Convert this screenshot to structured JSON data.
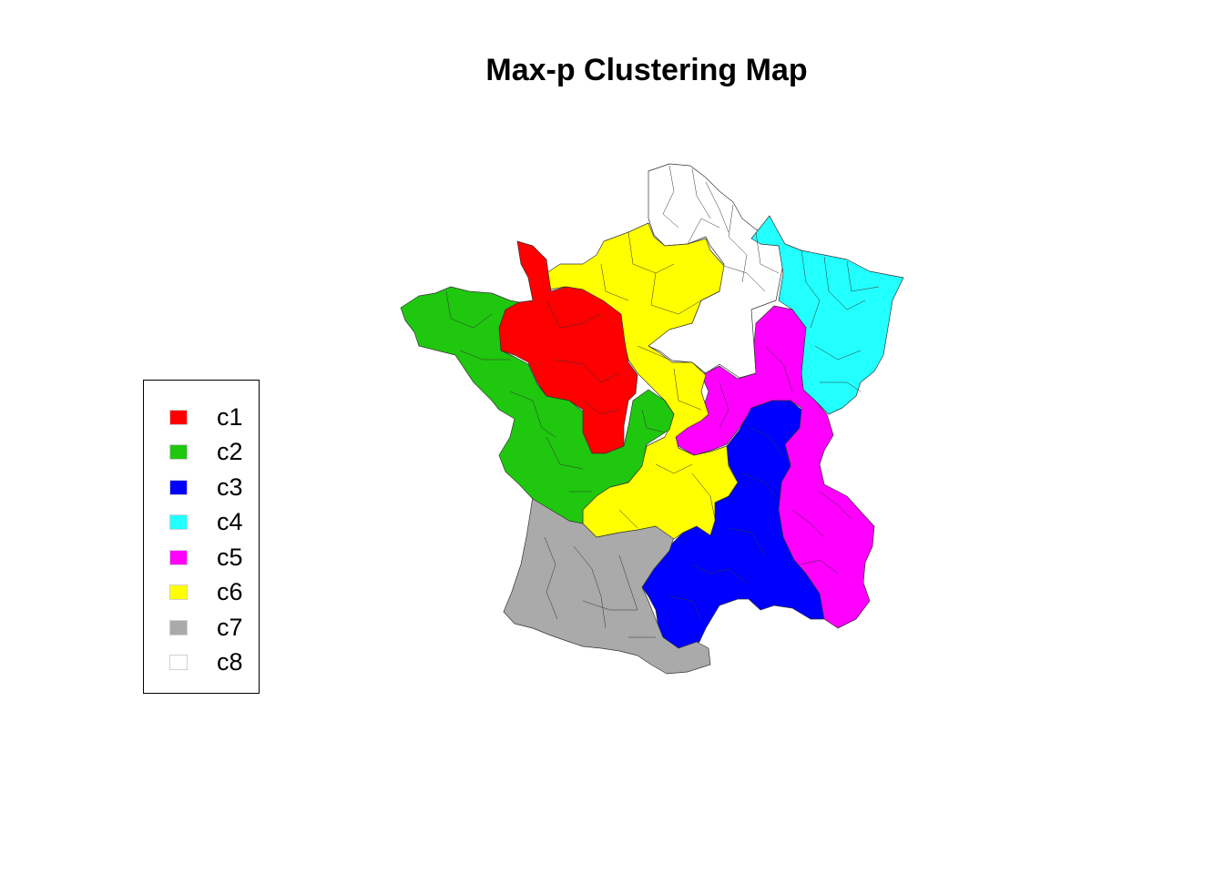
{
  "title": "Max-p Clustering Map",
  "legend": {
    "items": [
      {
        "label": "c1",
        "color": "#FF0000"
      },
      {
        "label": "c2",
        "color": "#1FC70F"
      },
      {
        "label": "c3",
        "color": "#0000FF"
      },
      {
        "label": "c4",
        "color": "#22FFFF"
      },
      {
        "label": "c5",
        "color": "#FF00FF"
      },
      {
        "label": "c6",
        "color": "#FFFF00"
      },
      {
        "label": "c7",
        "color": "#AAAAAA"
      },
      {
        "label": "c8",
        "color": "#FFFFFF"
      }
    ]
  },
  "clusters": [
    {
      "id": "c1",
      "color": "#FF0000"
    },
    {
      "id": "c2",
      "color": "#1FC70F"
    },
    {
      "id": "c3",
      "color": "#0000FF"
    },
    {
      "id": "c4",
      "color": "#22FFFF"
    },
    {
      "id": "c5",
      "color": "#FF00FF"
    },
    {
      "id": "c6",
      "color": "#FFFF00"
    },
    {
      "id": "c7",
      "color": "#AAAAAA"
    },
    {
      "id": "c8",
      "color": "#FFFFFF"
    }
  ]
}
